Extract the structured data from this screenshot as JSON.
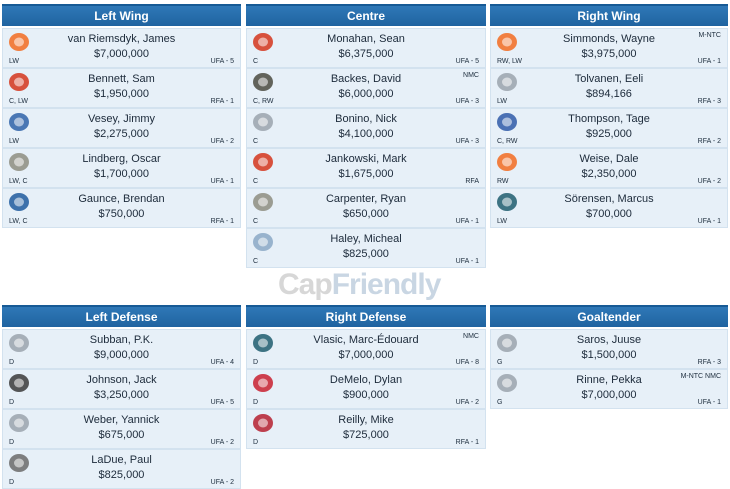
{
  "watermark": {
    "part1": "Cap",
    "part2": "Friendly"
  },
  "columns": [
    {
      "id": "left-wing",
      "header": "Left Wing",
      "players": [
        {
          "name": "van Riemsdyk, James",
          "cap": "$7,000,000",
          "pos": "LW",
          "contract": "UFA - 5",
          "clause": "",
          "team": "PHI"
        },
        {
          "name": "Bennett, Sam",
          "cap": "$1,950,000",
          "pos": "C, LW",
          "contract": "RFA - 1",
          "clause": "",
          "team": "CGY"
        },
        {
          "name": "Vesey, Jimmy",
          "cap": "$2,275,000",
          "pos": "LW",
          "contract": "UFA - 2",
          "clause": "",
          "team": "NYR"
        },
        {
          "name": "Lindberg, Oscar",
          "cap": "$1,700,000",
          "pos": "LW, C",
          "contract": "UFA - 1",
          "clause": "",
          "team": "VGK"
        },
        {
          "name": "Gaunce, Brendan",
          "cap": "$750,000",
          "pos": "LW, C",
          "contract": "RFA - 1",
          "clause": "",
          "team": "VAN"
        }
      ]
    },
    {
      "id": "centre",
      "header": "Centre",
      "players": [
        {
          "name": "Monahan, Sean",
          "cap": "$6,375,000",
          "pos": "C",
          "contract": "UFA - 5",
          "clause": "",
          "team": "CGY"
        },
        {
          "name": "Backes, David",
          "cap": "$6,000,000",
          "pos": "C, RW",
          "contract": "UFA - 3",
          "clause": "NMC",
          "team": "BOS"
        },
        {
          "name": "Bonino, Nick",
          "cap": "$4,100,000",
          "pos": "C",
          "contract": "UFA - 3",
          "clause": "",
          "team": "NSH"
        },
        {
          "name": "Jankowski, Mark",
          "cap": "$1,675,000",
          "pos": "C",
          "contract": "RFA",
          "clause": "",
          "team": "CGY"
        },
        {
          "name": "Carpenter, Ryan",
          "cap": "$650,000",
          "pos": "C",
          "contract": "UFA - 1",
          "clause": "",
          "team": "VGK"
        },
        {
          "name": "Haley, Micheal",
          "cap": "$825,000",
          "pos": "C",
          "contract": "UFA - 1",
          "clause": "",
          "team": "FLA"
        }
      ]
    },
    {
      "id": "right-wing",
      "header": "Right Wing",
      "players": [
        {
          "name": "Simmonds, Wayne",
          "cap": "$3,975,000",
          "pos": "RW, LW",
          "contract": "UFA - 1",
          "clause": "M-NTC",
          "team": "PHI"
        },
        {
          "name": "Tolvanen, Eeli",
          "cap": "$894,166",
          "pos": "LW",
          "contract": "RFA - 3",
          "clause": "",
          "team": "NSH"
        },
        {
          "name": "Thompson, Tage",
          "cap": "$925,000",
          "pos": "C, RW",
          "contract": "RFA - 2",
          "clause": "",
          "team": "BUF"
        },
        {
          "name": "Weise, Dale",
          "cap": "$2,350,000",
          "pos": "RW",
          "contract": "UFA - 2",
          "clause": "",
          "team": "PHI"
        },
        {
          "name": "Sörensen, Marcus",
          "cap": "$700,000",
          "pos": "LW",
          "contract": "UFA - 1",
          "clause": "",
          "team": "SJS"
        }
      ]
    },
    {
      "id": "left-defense",
      "header": "Left Defense",
      "players": [
        {
          "name": "Subban, P.K.",
          "cap": "$9,000,000",
          "pos": "D",
          "contract": "UFA - 4",
          "clause": "",
          "team": "NSH"
        },
        {
          "name": "Johnson, Jack",
          "cap": "$3,250,000",
          "pos": "D",
          "contract": "UFA - 5",
          "clause": "",
          "team": "PIT"
        },
        {
          "name": "Weber, Yannick",
          "cap": "$675,000",
          "pos": "D",
          "contract": "UFA - 2",
          "clause": "",
          "team": "NSH"
        },
        {
          "name": "LaDue, Paul",
          "cap": "$825,000",
          "pos": "D",
          "contract": "UFA - 2",
          "clause": "",
          "team": "LAK"
        }
      ]
    },
    {
      "id": "right-defense",
      "header": "Right Defense",
      "players": [
        {
          "name": "Vlasic, Marc-Édouard",
          "cap": "$7,000,000",
          "pos": "D",
          "contract": "UFA - 8",
          "clause": "NMC",
          "team": "SJS"
        },
        {
          "name": "DeMelo, Dylan",
          "cap": "$900,000",
          "pos": "D",
          "contract": "UFA - 2",
          "clause": "",
          "team": "OTT"
        },
        {
          "name": "Reilly, Mike",
          "cap": "$725,000",
          "pos": "D",
          "contract": "RFA - 1",
          "clause": "",
          "team": "MTL"
        }
      ]
    },
    {
      "id": "goaltender",
      "header": "Goaltender",
      "players": [
        {
          "name": "Saros, Juuse",
          "cap": "$1,500,000",
          "pos": "G",
          "contract": "RFA - 3",
          "clause": "",
          "team": "NSH"
        },
        {
          "name": "Rinne, Pekka",
          "cap": "$7,000,000",
          "pos": "G",
          "contract": "UFA - 1",
          "clause": "M-NTC NMC",
          "team": "NSH"
        }
      ]
    }
  ],
  "team_colors": {
    "PHI": "#f26b21",
    "CGY": "#d4351c",
    "NYR": "#2e62a8",
    "VGK": "#8d8d80",
    "VAN": "#1f5b9e",
    "BOS": "#4a4a40",
    "NSH": "#9aa3ad",
    "FLA": "#8aa8c6",
    "BUF": "#2f5aa8",
    "SJS": "#1f5d6e",
    "PIT": "#3a3a3a",
    "LAK": "#6a6a6a",
    "OTT": "#c8202f",
    "MTL": "#b5202f"
  }
}
